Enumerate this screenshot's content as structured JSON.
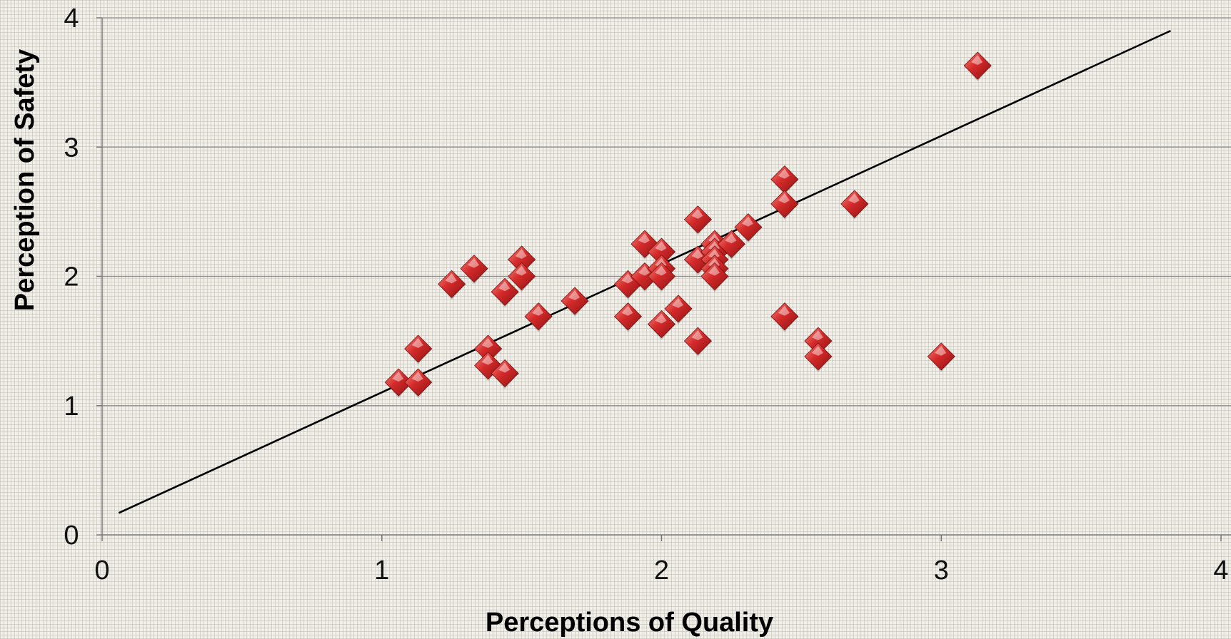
{
  "chart_data": {
    "type": "scatter",
    "xlabel": "Perceptions of Quality",
    "ylabel": "Perception of  Safety",
    "xlim": [
      0,
      4
    ],
    "ylim": [
      0,
      4
    ],
    "x_ticks": [
      "0",
      "1",
      "2",
      "3",
      "4"
    ],
    "y_ticks": [
      "0",
      "1",
      "2",
      "3",
      "4"
    ],
    "grid": "horizontal",
    "marker": "diamond",
    "marker_color": "#d42a2a",
    "trendline": {
      "x": [
        0.06,
        3.82
      ],
      "y": [
        0.17,
        3.9
      ],
      "color": "#000000"
    },
    "points": [
      {
        "x": 1.06,
        "y": 1.18
      },
      {
        "x": 1.13,
        "y": 1.18
      },
      {
        "x": 1.13,
        "y": 1.44
      },
      {
        "x": 1.25,
        "y": 1.94
      },
      {
        "x": 1.33,
        "y": 2.06
      },
      {
        "x": 1.38,
        "y": 1.44
      },
      {
        "x": 1.38,
        "y": 1.31
      },
      {
        "x": 1.44,
        "y": 1.25
      },
      {
        "x": 1.44,
        "y": 1.88
      },
      {
        "x": 1.5,
        "y": 2.13
      },
      {
        "x": 1.5,
        "y": 2.0
      },
      {
        "x": 1.56,
        "y": 1.69
      },
      {
        "x": 1.69,
        "y": 1.81
      },
      {
        "x": 1.88,
        "y": 1.94
      },
      {
        "x": 1.88,
        "y": 1.69
      },
      {
        "x": 1.94,
        "y": 2.25
      },
      {
        "x": 1.94,
        "y": 2.0
      },
      {
        "x": 2.0,
        "y": 2.19
      },
      {
        "x": 2.0,
        "y": 2.06
      },
      {
        "x": 2.0,
        "y": 2.0
      },
      {
        "x": 2.0,
        "y": 1.63
      },
      {
        "x": 2.06,
        "y": 1.75
      },
      {
        "x": 2.13,
        "y": 2.44
      },
      {
        "x": 2.13,
        "y": 2.13
      },
      {
        "x": 2.13,
        "y": 1.5
      },
      {
        "x": 2.19,
        "y": 2.25
      },
      {
        "x": 2.19,
        "y": 2.19
      },
      {
        "x": 2.19,
        "y": 2.13
      },
      {
        "x": 2.19,
        "y": 2.06
      },
      {
        "x": 2.19,
        "y": 2.0
      },
      {
        "x": 2.25,
        "y": 2.25
      },
      {
        "x": 2.31,
        "y": 2.38
      },
      {
        "x": 2.44,
        "y": 2.75
      },
      {
        "x": 2.44,
        "y": 2.56
      },
      {
        "x": 2.44,
        "y": 1.69
      },
      {
        "x": 2.56,
        "y": 1.5
      },
      {
        "x": 2.56,
        "y": 1.38
      },
      {
        "x": 2.69,
        "y": 2.56
      },
      {
        "x": 3.0,
        "y": 1.38
      },
      {
        "x": 3.13,
        "y": 3.63
      }
    ]
  }
}
